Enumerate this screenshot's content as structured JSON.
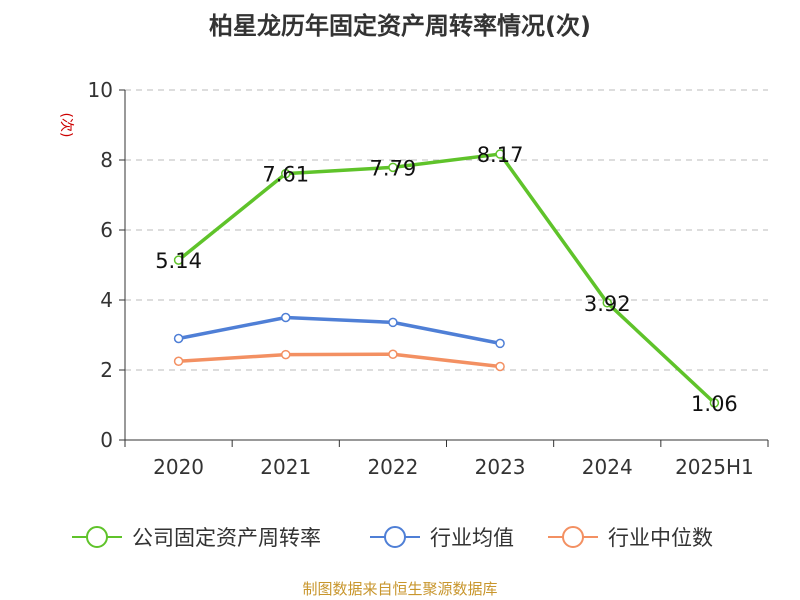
{
  "chart_data": {
    "type": "line",
    "title": "柏星龙历年固定资产周转率情况(次)",
    "ylabel": "(次)",
    "xlabel": "",
    "categories": [
      "2020",
      "2021",
      "2022",
      "2023",
      "2024",
      "2025H1"
    ],
    "ylim": [
      0,
      10
    ],
    "yticks": [
      0,
      2,
      4,
      6,
      8,
      10
    ],
    "grid": true,
    "legend_position": "bottom",
    "series": [
      {
        "name": "公司固定资产周转率",
        "color": "#5fc32a",
        "values": [
          5.14,
          7.61,
          7.79,
          8.17,
          3.92,
          1.06
        ],
        "show_labels": true
      },
      {
        "name": "行业均值",
        "color": "#4f7fd6",
        "values": [
          2.9,
          3.5,
          3.36,
          2.76,
          null,
          null
        ],
        "show_labels": false
      },
      {
        "name": "行业中位数",
        "color": "#f39062",
        "values": [
          2.25,
          2.44,
          2.45,
          2.1,
          null,
          null
        ],
        "show_labels": false
      }
    ]
  },
  "source": "制图数据来自恒生聚源数据库"
}
